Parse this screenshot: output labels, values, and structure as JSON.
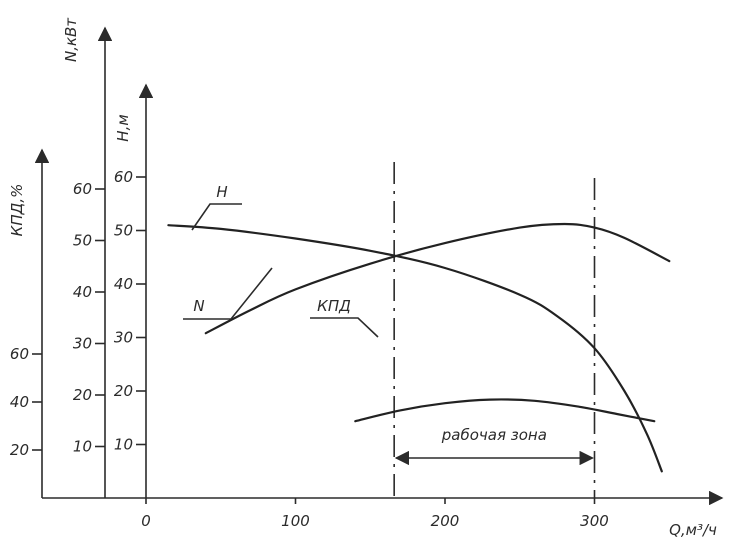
{
  "chart_data": {
    "type": "line",
    "title": "",
    "x_axis": {
      "label": "Q,м³/ч",
      "ticks": [
        0,
        100,
        200,
        300
      ],
      "range": [
        0,
        380
      ]
    },
    "y_axes": [
      {
        "id": "kpd",
        "label": "КПД,%",
        "ticks": [
          20,
          40,
          60
        ],
        "range": [
          0,
          90
        ]
      },
      {
        "id": "N",
        "label": "N,кВт",
        "ticks": [
          10,
          20,
          30,
          40,
          50,
          60
        ],
        "range": [
          0,
          75
        ]
      },
      {
        "id": "H",
        "label": "H,м",
        "ticks": [
          10,
          20,
          30,
          40,
          50,
          60
        ],
        "range": [
          0,
          72
        ]
      }
    ],
    "series": [
      {
        "name": "H",
        "axis": "H",
        "points": [
          [
            15,
            51
          ],
          [
            50,
            50.3
          ],
          [
            100,
            48.5
          ],
          [
            150,
            46.2
          ],
          [
            200,
            43
          ],
          [
            250,
            38
          ],
          [
            275,
            34
          ],
          [
            300,
            28
          ],
          [
            320,
            20
          ],
          [
            335,
            12
          ],
          [
            345,
            5
          ]
        ]
      },
      {
        "name": "N",
        "axis": "N",
        "points": [
          [
            40,
            32
          ],
          [
            70,
            36.5
          ],
          [
            100,
            40.5
          ],
          [
            150,
            45.5
          ],
          [
            200,
            49.5
          ],
          [
            250,
            52.5
          ],
          [
            280,
            53.2
          ],
          [
            300,
            52.5
          ],
          [
            320,
            50.5
          ],
          [
            350,
            46
          ]
        ]
      },
      {
        "name": "КПД",
        "axis": "kpd",
        "points": [
          [
            140,
            32
          ],
          [
            170,
            36.5
          ],
          [
            200,
            39.5
          ],
          [
            230,
            41
          ],
          [
            260,
            40.5
          ],
          [
            290,
            38
          ],
          [
            315,
            35
          ],
          [
            340,
            32
          ]
        ]
      }
    ],
    "annotations": [
      {
        "id": "work-zone",
        "text": "рабочая зона",
        "x_from": 166,
        "x_to": 300
      }
    ],
    "grid": false,
    "legend": "none"
  }
}
